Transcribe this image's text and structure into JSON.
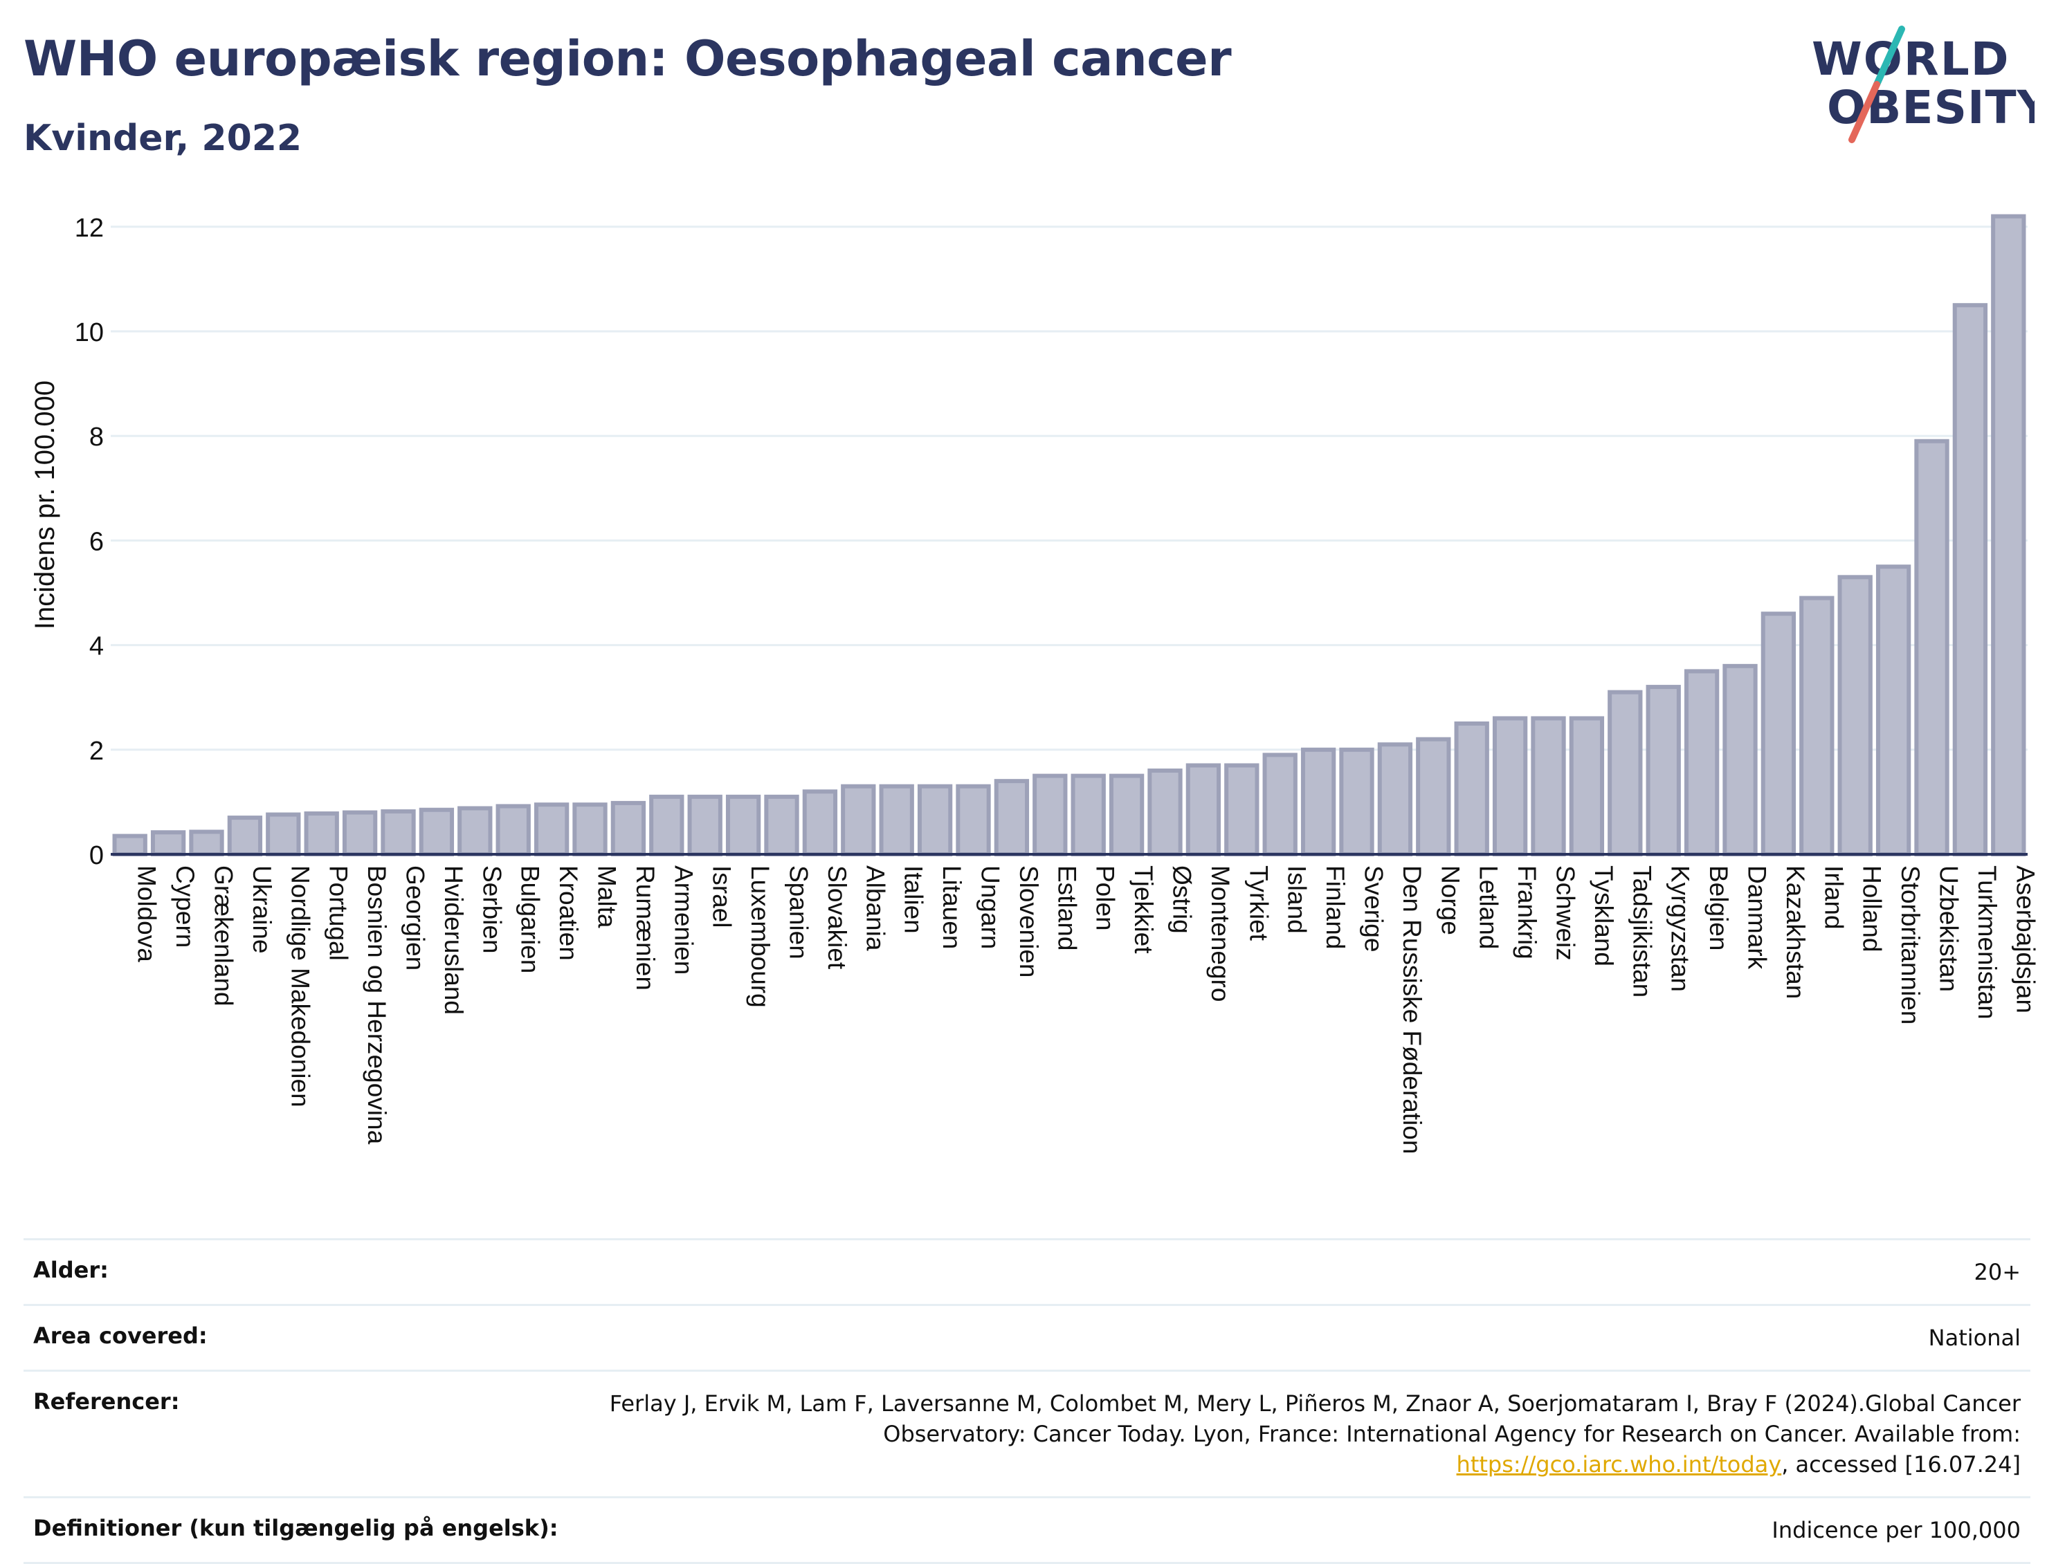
{
  "header": {
    "title": "WHO europæisk region: Oesophageal cancer",
    "subtitle": "Kvinder, 2022",
    "logo_line1": "WORLD",
    "logo_line2": "OBESITY"
  },
  "colors": {
    "title": "#2b3560",
    "bar_fill": "#b9bccd",
    "bar_stroke": "#9da1b8",
    "grid": "#e6eef3",
    "link": "#e0a800",
    "logo_teal": "#2bb7b3",
    "logo_red": "#e4675a"
  },
  "chart_data": {
    "type": "bar",
    "title": "WHO europæisk region: Oesophageal cancer",
    "subtitle": "Kvinder, 2022",
    "xlabel": "",
    "ylabel": "Incidens pr. 100.000",
    "ylim": [
      0,
      12.5
    ],
    "yticks": [
      0,
      2,
      4,
      6,
      8,
      10,
      12
    ],
    "grid": true,
    "categories": [
      "Moldova",
      "Cypern",
      "Grækenland",
      "Ukraine",
      "Nordlige Makedonien",
      "Portugal",
      "Bosnien og Herzegovina",
      "Georgien",
      "Hviderusland",
      "Serbien",
      "Bulgarien",
      "Kroatien",
      "Malta",
      "Rumænien",
      "Armenien",
      "Israel",
      "Luxembourg",
      "Spanien",
      "Slovakiet",
      "Albania",
      "Italien",
      "Litauen",
      "Ungarn",
      "Slovenien",
      "Estland",
      "Polen",
      "Tjekkiet",
      "Østrig",
      "Montenegro",
      "Tyrkiet",
      "Island",
      "Finland",
      "Sverige",
      "Den Russiske Føderation",
      "Norge",
      "Letland",
      "Frankrig",
      "Schweiz",
      "Tyskland",
      "Tadsjikistan",
      "Kyrgyzstan",
      "Belgien",
      "Danmark",
      "Kazakhstan",
      "Irland",
      "Holland",
      "Storbritannien",
      "Uzbekistan",
      "Turkmenistan",
      "Aserbajdsjan"
    ],
    "values": [
      0.35,
      0.42,
      0.43,
      0.7,
      0.76,
      0.78,
      0.8,
      0.82,
      0.85,
      0.88,
      0.92,
      0.95,
      0.95,
      0.98,
      1.1,
      1.1,
      1.1,
      1.1,
      1.2,
      1.3,
      1.3,
      1.3,
      1.3,
      1.4,
      1.5,
      1.5,
      1.5,
      1.6,
      1.7,
      1.7,
      1.9,
      2.0,
      2.0,
      2.1,
      2.2,
      2.5,
      2.6,
      2.6,
      2.6,
      3.1,
      3.2,
      3.5,
      3.6,
      4.6,
      4.9,
      5.3,
      5.5,
      7.9,
      10.5,
      12.2
    ]
  },
  "meta": [
    {
      "label": "Alder:",
      "value": "20+"
    },
    {
      "label": "Area covered:",
      "value": "National"
    },
    {
      "label": "Referencer:",
      "value_before": "Ferlay J, Ervik M, Lam F, Laversanne M, Colombet M, Mery L, Piñeros M, Znaor A, Soerjomataram I, Bray F (2024).Global Cancer Observatory: Cancer Today. Lyon, France: International Agency for Research on Cancer. Available from: ",
      "link": "https://gco.iarc.who.int/today",
      "value_after": ", accessed [16.07.24]"
    },
    {
      "label": "Definitioner (kun tilgængelig på engelsk):",
      "value": "Indicence per 100,000"
    }
  ]
}
